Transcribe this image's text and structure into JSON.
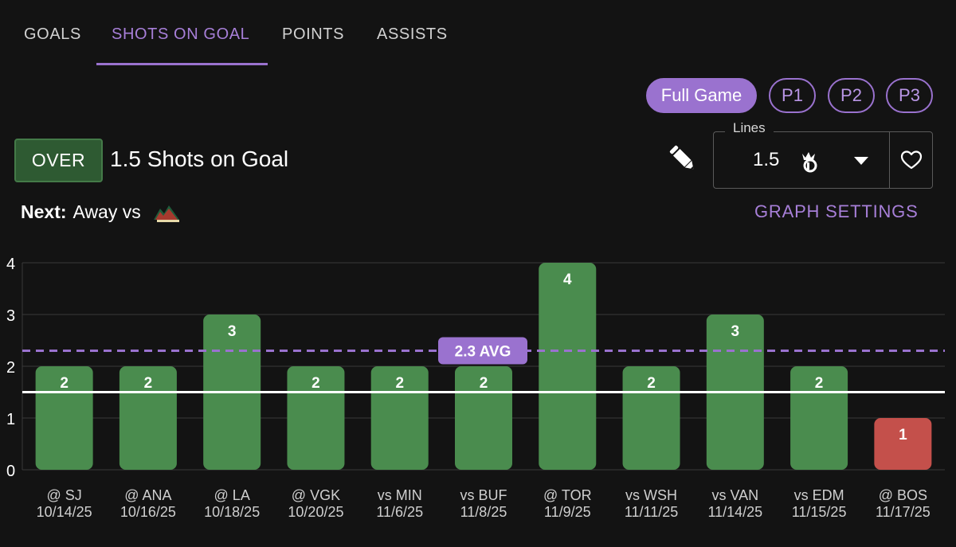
{
  "tabs": [
    {
      "label": "GOALS",
      "active": false
    },
    {
      "label": "SHOTS ON GOAL",
      "active": true
    },
    {
      "label": "POINTS",
      "active": false
    },
    {
      "label": "ASSISTS",
      "active": false
    }
  ],
  "periods": [
    {
      "label": "Full Game",
      "active": true
    },
    {
      "label": "P1",
      "active": false
    },
    {
      "label": "P2",
      "active": false
    },
    {
      "label": "P3",
      "active": false
    }
  ],
  "prop": {
    "side": "OVER",
    "line_text": "1.5 Shots on Goal"
  },
  "lines": {
    "legend": "Lines",
    "value": "1.5"
  },
  "next": {
    "label": "Next:",
    "text": "Away vs"
  },
  "graph_settings": "GRAPH SETTINGS",
  "colors": {
    "accent": "#9a72cf",
    "hit": "#4a8c4e",
    "miss": "#c4504b",
    "line": "#ffffff"
  },
  "chart_data": {
    "type": "bar",
    "categories": [
      "@ SJ",
      "@ ANA",
      "@ LA",
      "@ VGK",
      "vs MIN",
      "vs BUF",
      "@ TOR",
      "vs WSH",
      "vs VAN",
      "vs EDM",
      "@ BOS"
    ],
    "dates": [
      "10/14/25",
      "10/16/25",
      "10/18/25",
      "10/20/25",
      "11/6/25",
      "11/8/25",
      "11/9/25",
      "11/11/25",
      "11/14/25",
      "11/15/25",
      "11/17/25"
    ],
    "values": [
      2,
      2,
      3,
      2,
      2,
      2,
      4,
      2,
      3,
      2,
      1
    ],
    "ylim": [
      0,
      4
    ],
    "yticks": [
      0,
      1,
      2,
      3,
      4
    ],
    "line": 1.5,
    "average": 2.3,
    "average_label": "2.3 AVG",
    "grid": true
  }
}
